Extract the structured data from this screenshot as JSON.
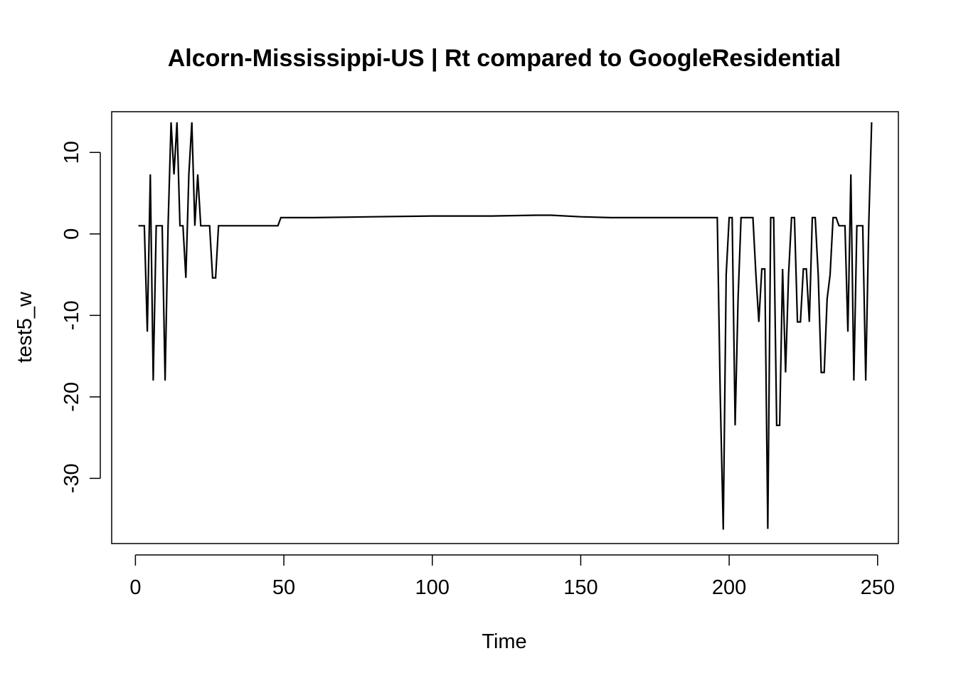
{
  "chart_data": {
    "type": "line",
    "title": "Alcorn-Mississippi-US | Rt compared to GoogleResidential",
    "xlabel": "Time",
    "ylabel": "test5_w",
    "xlim": [
      -8,
      257
    ],
    "ylim": [
      -38,
      15
    ],
    "x_ticks": [
      0,
      50,
      100,
      150,
      200,
      250
    ],
    "x_tick_labels": [
      "0",
      "50",
      "100",
      "150",
      "200",
      "250"
    ],
    "y_ticks": [
      -30,
      -20,
      -10,
      0,
      10
    ],
    "y_tick_labels": [
      "-30",
      "-20",
      "-10",
      "0",
      "10"
    ],
    "grid": false,
    "legend": "none",
    "line_color": "#000000",
    "series": [
      {
        "x": [
          1,
          2,
          3,
          4,
          5,
          6,
          7,
          8,
          9,
          10,
          11,
          12,
          13,
          14,
          15,
          16,
          17,
          18,
          19,
          20,
          21,
          22,
          23,
          24,
          25,
          26,
          27,
          28,
          29,
          30,
          40,
          48,
          49,
          50,
          60,
          80,
          100,
          120,
          135,
          140,
          150,
          160,
          170,
          180,
          190,
          196,
          197,
          198,
          199,
          200,
          201,
          202,
          203,
          204,
          205,
          206,
          207,
          208,
          209,
          210,
          211,
          212,
          213,
          214,
          215,
          216,
          217,
          218,
          219,
          220,
          221,
          222,
          223,
          224,
          225,
          226,
          227,
          228,
          229,
          230,
          231,
          232,
          233,
          234,
          235,
          236,
          237,
          238,
          239,
          240,
          241,
          242,
          243,
          244,
          245,
          246,
          247,
          248
        ],
        "y": [
          1,
          1,
          1,
          -12,
          7.3,
          -18,
          1,
          1,
          1,
          -18,
          1,
          13.7,
          7.3,
          13.7,
          1,
          1,
          -5.4,
          7.3,
          13.7,
          1,
          7.3,
          1,
          1,
          1,
          1,
          -5.4,
          -5.4,
          1,
          1,
          1,
          1,
          1,
          2,
          2,
          2,
          2.1,
          2.2,
          2.2,
          2.3,
          2.3,
          2.1,
          2,
          2,
          2,
          2,
          2,
          -20,
          -36.3,
          -5,
          2,
          2,
          -23.5,
          -8,
          2,
          2,
          2,
          2,
          2,
          -5,
          -10.8,
          -4.3,
          -4.3,
          -36.2,
          2,
          2,
          -23.5,
          -23.5,
          -4.3,
          -17,
          -5,
          2,
          2,
          -10.8,
          -10.8,
          -4.3,
          -4.3,
          -10.8,
          2,
          2,
          -5,
          -17,
          -17,
          -8,
          -5,
          2,
          2,
          1,
          1,
          1,
          -12,
          7.3,
          -18,
          1,
          1,
          1,
          -18,
          1,
          13.7
        ]
      }
    ]
  }
}
